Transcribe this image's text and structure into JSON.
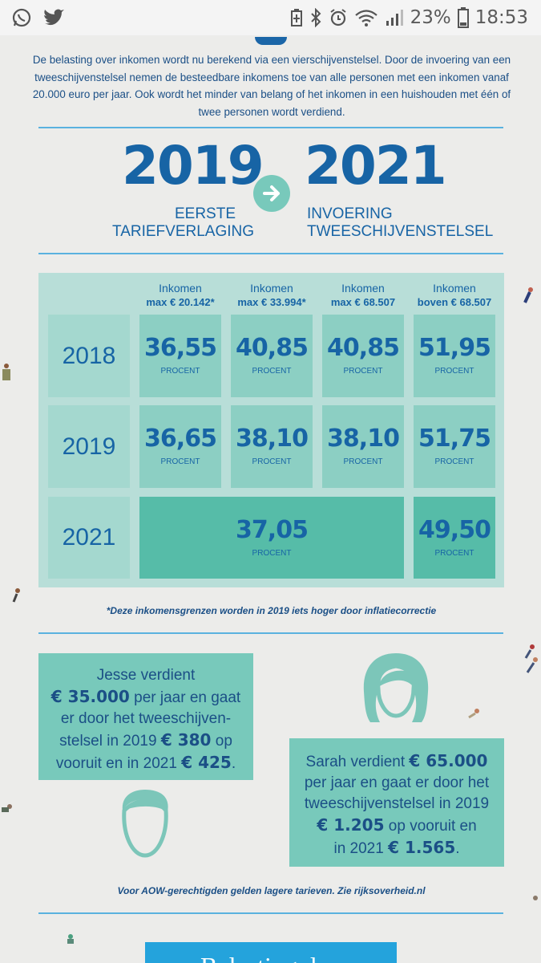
{
  "status_bar": {
    "battery_percent": "23%",
    "time": "18:53",
    "icons": [
      "whatsapp-icon",
      "twitter-icon",
      "battery-saver-icon",
      "bluetooth-icon",
      "alarm-icon",
      "wifi-icon",
      "signal-icon",
      "battery-icon"
    ]
  },
  "intro": {
    "text": "De belasting over inkomen wordt nu berekend via een vierschijvenstelsel. Door de invoering van een tweeschijvenstelsel nemen de besteedbare inkomens toe van alle personen met een inkomen vanaf 20.000 euro per jaar. Ook wordt het minder van belang of het inkomen in een huishouden met één of twee personen wordt verdiend."
  },
  "timeline": {
    "from_year": "2019",
    "from_line1": "EERSTE",
    "from_line2": "TARIEFVERLAGING",
    "to_year": "2021",
    "to_line1": "INVOERING",
    "to_line2": "TWEESCHIJVENSTELSEL"
  },
  "table": {
    "columns": [
      {
        "label": "Inkomen",
        "range": "max € 20.142*"
      },
      {
        "label": "Inkomen",
        "range": "max € 33.994*"
      },
      {
        "label": "Inkomen",
        "range": "max € 68.507"
      },
      {
        "label": "Inkomen",
        "range": "boven € 68.507"
      }
    ],
    "unit": "PROCENT",
    "rows": [
      {
        "year": "2018",
        "values": [
          "36,55",
          "40,85",
          "40,85",
          "51,95"
        ]
      },
      {
        "year": "2019",
        "values": [
          "36,65",
          "38,10",
          "38,10",
          "51,75"
        ]
      },
      {
        "year": "2021",
        "merged_value": "37,05",
        "last_value": "49,50"
      }
    ],
    "footnote": "*Deze inkomensgrenzen worden in 2019 iets hoger door inflatiecorrectie"
  },
  "jesse": {
    "t1": "Jesse verdient",
    "amount": "€ 35.000",
    "t2": " per jaar en gaat",
    "t3": "er door het tweeschijven-",
    "t4": "stelsel in 2019 ",
    "gain2019": "€ 380",
    "t5": " op",
    "t6": "vooruit en in 2021 ",
    "gain2021": "€ 425",
    "t7": "."
  },
  "sarah": {
    "t1": "Sarah verdient ",
    "amount": "€ 65.000",
    "t2": "per jaar en gaat er door het",
    "t3": "tweeschijvenstelsel in 2019",
    "gain2019": "€ 1.205",
    "t4": " op vooruit en",
    "t5": "in 2021 ",
    "gain2021": "€ 1.565",
    "t6": "."
  },
  "bottom_note": "Voor AOW-gerechtigden gelden lagere tarieven. Zie rijksoverheid.nl",
  "bottom_button": "Belastingplan",
  "colors": {
    "primary_blue": "#1764a5",
    "teal": "#78c9bb",
    "teal_dark": "#56bca8",
    "rule_blue": "#5ab2df",
    "button_blue": "#24a3dc"
  }
}
